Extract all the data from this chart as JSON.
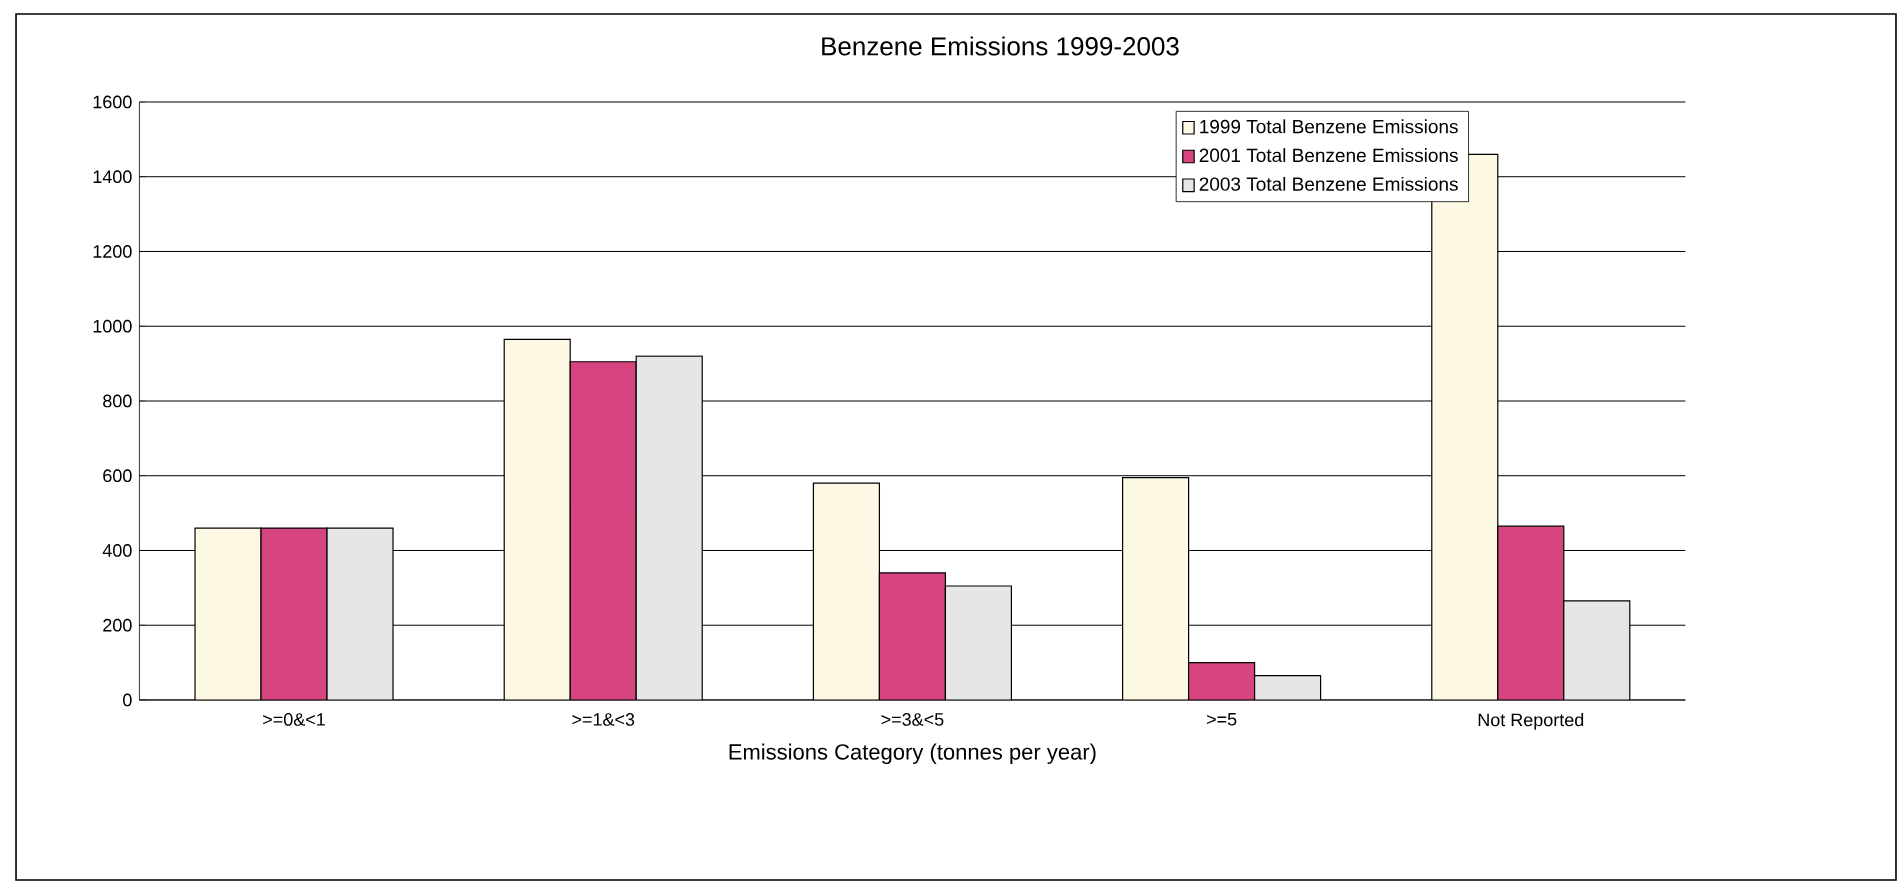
{
  "chart_data": {
    "type": "bar",
    "title": "Benzene Emissions 1999-2003",
    "xlabel": "Emissions Category (tonnes per year)",
    "categories": [
      ">=0&<1",
      ">=1&<3",
      ">=3&<5",
      ">=5",
      "Not Reported"
    ],
    "series": [
      {
        "name": "1999 Total Benzene Emissions",
        "color": "#fdf8e4",
        "values": [
          460,
          965,
          580,
          595,
          1460
        ]
      },
      {
        "name": "2001 Total Benzene Emissions",
        "color": "#d6457f",
        "values": [
          460,
          905,
          340,
          100,
          465
        ]
      },
      {
        "name": "2003 Total Benzene Emissions",
        "color": "#e6e6e6",
        "values": [
          460,
          920,
          305,
          65,
          265
        ]
      }
    ],
    "ylim": [
      0,
      1600
    ],
    "yticks": [
      0,
      200,
      400,
      600,
      800,
      1000,
      1200,
      1400,
      1600
    ],
    "grid": "y",
    "legend": "top right"
  }
}
